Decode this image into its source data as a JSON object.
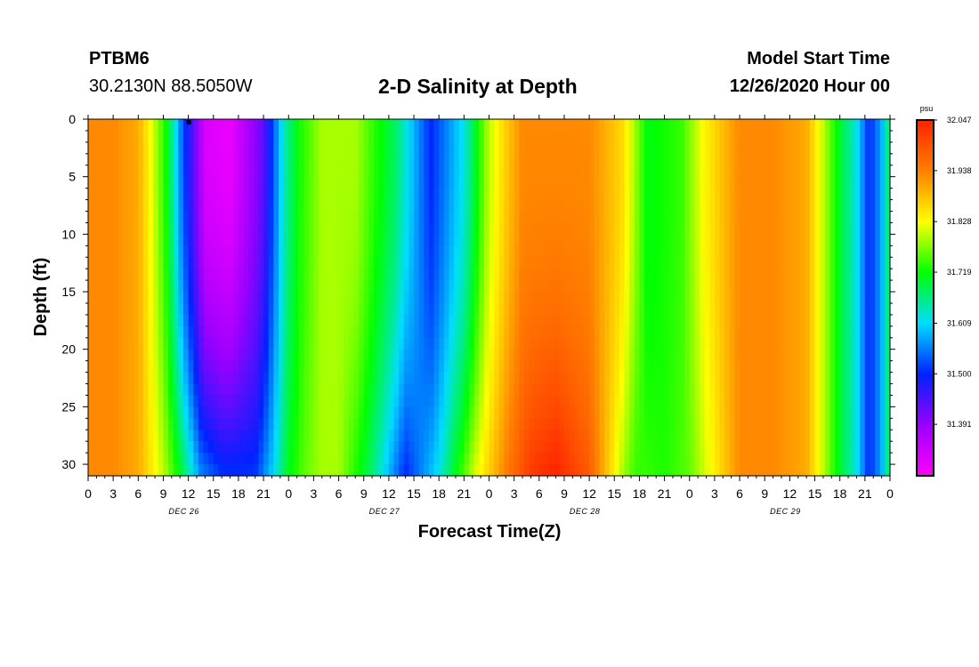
{
  "header": {
    "station": "PTBM6",
    "coords": "30.2130N 88.5050W",
    "title": "2-D Salinity at Depth",
    "start_label": "Model Start Time",
    "start_value": "12/26/2020 Hour 00"
  },
  "chart_data": {
    "type": "heatmap",
    "title": "2-D Salinity at Depth",
    "xlabel": "Forecast Time(Z)",
    "ylabel": "Depth (ft)",
    "x_tick_labels": [
      "0",
      "3",
      "6",
      "9",
      "12",
      "15",
      "18",
      "21",
      "0",
      "3",
      "6",
      "9",
      "12",
      "15",
      "18",
      "21",
      "0",
      "3",
      "6",
      "9",
      "12",
      "15",
      "18",
      "21",
      "0",
      "3",
      "6",
      "9",
      "12",
      "15",
      "18",
      "21",
      "0"
    ],
    "x_range_hours": [
      0,
      96
    ],
    "day_labels": [
      "DEC 26",
      "DEC 27",
      "DEC 28",
      "DEC 29"
    ],
    "y_tick_labels": [
      "0",
      "5",
      "10",
      "15",
      "20",
      "25",
      "30"
    ],
    "ylim": [
      0,
      31
    ],
    "colorbar": {
      "unit": "psu",
      "range": [
        31.28,
        32.047
      ],
      "labels": [
        "32.047",
        "31.938",
        "31.828",
        "31.719",
        "31.609",
        "31.500",
        "31.391"
      ],
      "colors": [
        "#ff00ff",
        "#9900ff",
        "#0022ff",
        "#00ddff",
        "#00ff00",
        "#ffff00",
        "#ff8000",
        "#ff2200"
      ]
    },
    "surface_profile_hours": [
      0,
      3,
      6,
      8,
      9.5,
      11,
      14,
      17,
      21,
      23.5,
      25.5,
      28,
      32,
      37,
      41,
      45,
      48,
      50,
      52,
      56,
      60,
      64,
      67,
      71,
      74,
      78,
      82,
      86,
      88,
      90,
      92,
      93.5,
      95,
      96
    ],
    "surface_profile_values": [
      31.93,
      31.93,
      31.9,
      31.8,
      31.71,
      31.56,
      31.32,
      31.3,
      31.43,
      31.64,
      31.73,
      31.79,
      31.79,
      31.67,
      31.5,
      31.62,
      31.8,
      31.87,
      31.93,
      31.93,
      31.93,
      31.86,
      31.71,
      31.74,
      31.84,
      31.93,
      31.93,
      31.9,
      31.8,
      31.7,
      31.62,
      31.5,
      31.58,
      31.69
    ],
    "bottom_profile_hours": [
      0,
      3,
      6,
      9,
      11,
      13.5,
      16,
      20,
      22,
      24,
      26,
      28,
      30,
      34,
      38,
      42,
      46,
      48,
      50,
      53,
      56,
      60,
      64,
      65.5,
      67,
      69,
      72,
      75,
      78,
      82,
      86,
      88,
      90,
      92,
      93.5,
      95,
      96
    ],
    "bottom_profile_values": [
      31.93,
      31.93,
      31.9,
      31.8,
      31.71,
      31.56,
      31.51,
      31.51,
      31.6,
      31.71,
      31.76,
      31.79,
      31.79,
      31.67,
      31.5,
      31.62,
      31.8,
      31.87,
      31.94,
      32.02,
      32.047,
      31.98,
      31.79,
      31.74,
      31.74,
      31.73,
      31.76,
      31.84,
      31.93,
      31.93,
      31.9,
      31.8,
      31.7,
      31.62,
      31.5,
      31.58,
      31.69
    ],
    "marker": {
      "hour": 12,
      "depth_ft": 0
    }
  }
}
